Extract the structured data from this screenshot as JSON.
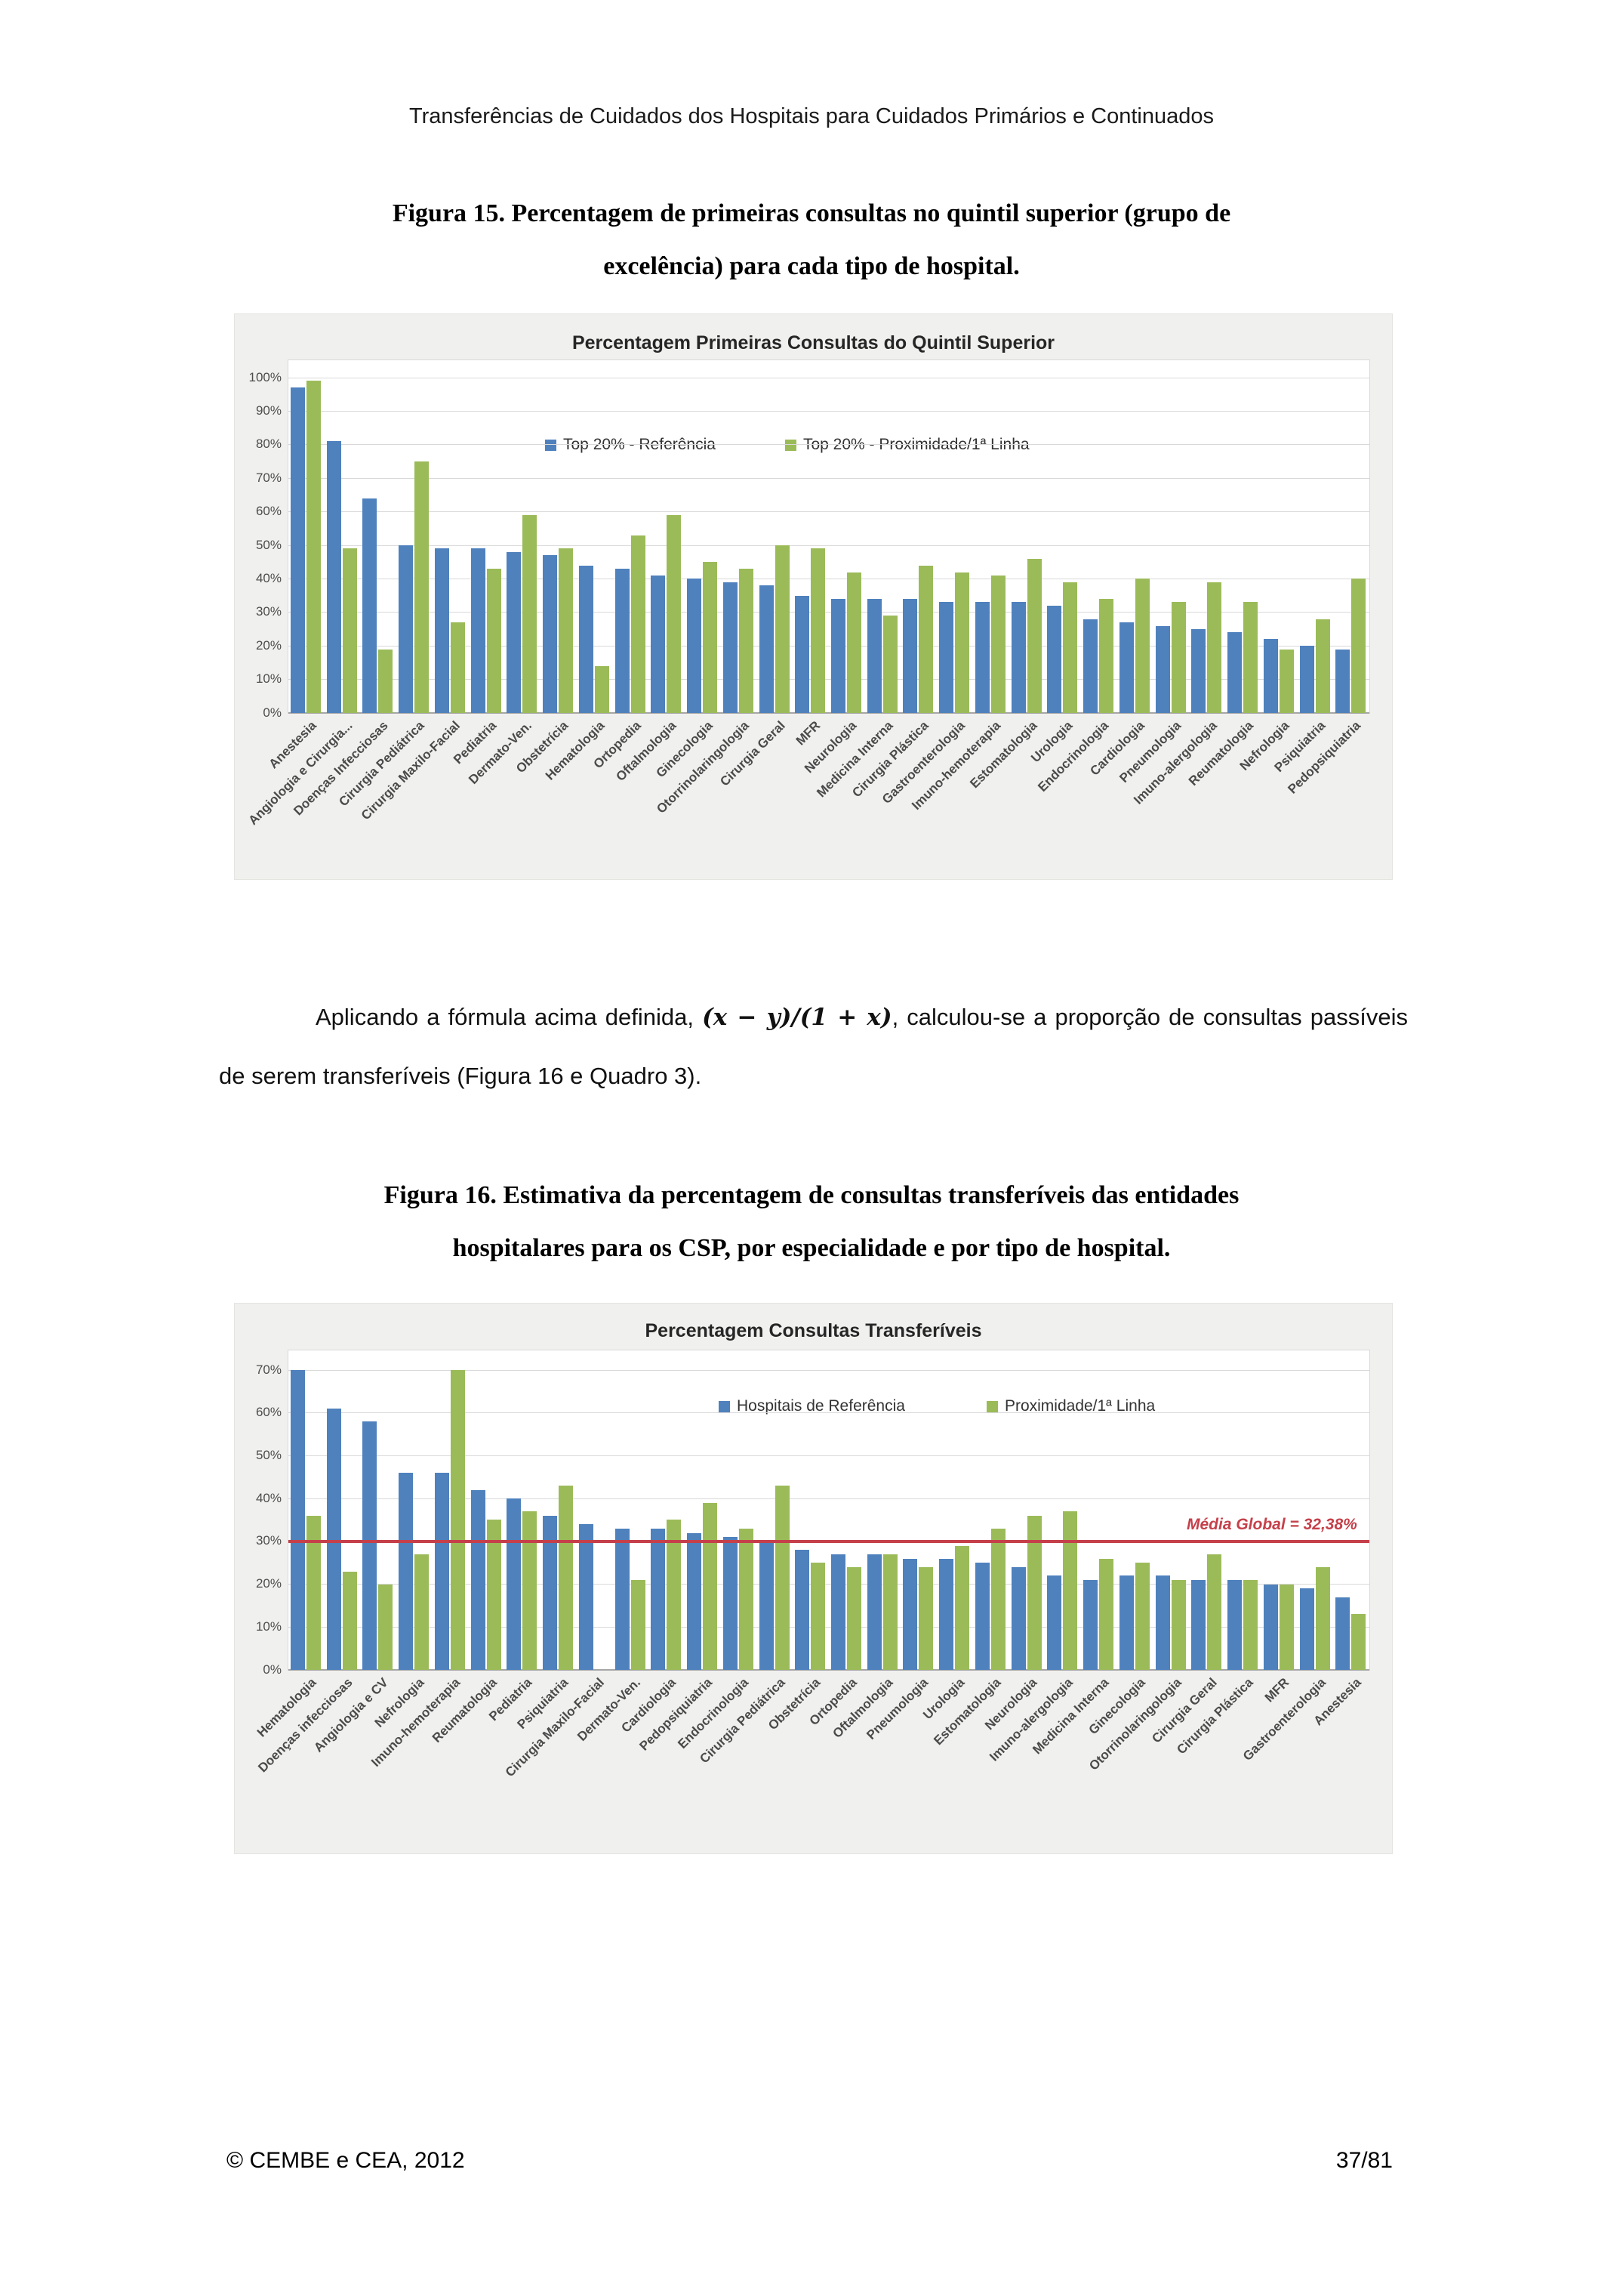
{
  "page": {
    "header": "Transferências de Cuidados dos Hospitais para Cuidados Primários e Continuados",
    "figura15": {
      "line1": "Figura 15. Percentagem de primeiras consultas no quintil superior (grupo de",
      "line2": "excelência) para cada tipo de hospital."
    },
    "paragraph": {
      "text_before_formula": "Aplicando a fórmula acima definida, ",
      "formula": "(x − y)/(1 + x)",
      "text_after_formula": ", calculou-se a proporção de consultas passíveis de serem transferíveis (Figura 16 e Quadro 3)."
    },
    "figura16": {
      "line1": "Figura 16. Estimativa da percentagem de consultas transferíveis das entidades",
      "line2": "hospitalares para os CSP, por especialidade e por tipo de hospital."
    },
    "footer": {
      "left": "© CEMBE e CEA, 2012",
      "right": "37/81"
    }
  },
  "colors": {
    "referencia_blue": "#4F81BD",
    "proximidade_green": "#9BBB59",
    "media_line_red": "#C5404A",
    "grid_gray": "#d9d9d9"
  },
  "chart_data": [
    {
      "type": "bar",
      "title": "Percentagem Primeiras Consultas do Quintil Superior",
      "xlabel": "",
      "ylabel": "",
      "ylim": [
        0,
        100
      ],
      "ystep": 10,
      "grid": true,
      "legend_position": "inside-top",
      "categories": [
        "Anestesia",
        "Angiologia e Cirurgia...",
        "Doenças Infecciosas",
        "Cirurgia Pediátrica",
        "Cirurgia Maxilo-Facial",
        "Pediatria",
        "Dermato-Ven.",
        "Obstetrícia",
        "Hematologia",
        "Ortopedia",
        "Oftalmologia",
        "Ginecologia",
        "Otorrinolaringologia",
        "Cirurgia Geral",
        "MFR",
        "Neurologia",
        "Medicina Interna",
        "Cirurgia Plástica",
        "Gastroenterologia",
        "Imuno-hemoterapia",
        "Estomatologia",
        "Urologia",
        "Endocrinologia",
        "Cardiologia",
        "Pneumologia",
        "Imuno-alergologia",
        "Reumatologia",
        "Nefrologia",
        "Psiquiatria",
        "Pedopsiquiatria"
      ],
      "series": [
        {
          "name": "Top 20% - Referência",
          "color": "#4F81BD",
          "values": [
            97,
            81,
            64,
            50,
            49,
            49,
            48,
            47,
            44,
            43,
            41,
            40,
            39,
            38,
            35,
            34,
            34,
            34,
            33,
            33,
            33,
            32,
            28,
            27,
            26,
            25,
            24,
            22,
            20,
            19
          ]
        },
        {
          "name": "Top 20% - Proximidade/1ª Linha",
          "color": "#9BBB59",
          "values": [
            99,
            49,
            19,
            75,
            27,
            43,
            59,
            49,
            14,
            53,
            59,
            45,
            43,
            50,
            49,
            42,
            29,
            44,
            42,
            41,
            46,
            39,
            34,
            40,
            33,
            39,
            33,
            19,
            28,
            40
          ]
        }
      ]
    },
    {
      "type": "bar",
      "title": "Percentagem Consultas Transferíveis",
      "xlabel": "",
      "ylabel": "",
      "ylim": [
        0,
        70
      ],
      "ystep": 10,
      "grid": true,
      "legend_position": "inside-top",
      "categories": [
        "Hematologia",
        "Doenças infecciosas",
        "Angiologia e CV",
        "Nefrologia",
        "Imuno-hemoterapia",
        "Reumatologia",
        "Pediatria",
        "Psiquiatria",
        "Cirurgia Maxilo-Facial",
        "Dermato-Ven.",
        "Cardiologia",
        "Pedopsiquiatria",
        "Endocrinologia",
        "Cirurgia Pediátrica",
        "Obstetrícia",
        "Ortopedia",
        "Oftalmologia",
        "Pneumologia",
        "Urologia",
        "Estomatologia",
        "Neurologia",
        "Imuno-alergologia",
        "Medicina Interna",
        "Ginecologia",
        "Otorrinolaringologia",
        "Cirurgia Geral",
        "Cirurgia Plástica",
        "MFR",
        "Gastroenterologia",
        "Anestesia"
      ],
      "series": [
        {
          "name": "Hospitais de Referência",
          "color": "#4F81BD",
          "values": [
            70,
            61,
            58,
            46,
            46,
            42,
            40,
            36,
            34,
            33,
            33,
            32,
            31,
            30,
            28,
            27,
            27,
            26,
            26,
            25,
            24,
            22,
            21,
            22,
            22,
            21,
            21,
            20,
            19,
            17
          ]
        },
        {
          "name": "Proximidade/1ª Linha",
          "color": "#9BBB59",
          "values": [
            36,
            23,
            20,
            27,
            70,
            35,
            37,
            43,
            0,
            21,
            35,
            39,
            33,
            43,
            25,
            24,
            27,
            24,
            29,
            33,
            36,
            37,
            26,
            25,
            21,
            27,
            21,
            20,
            24,
            13
          ]
        }
      ],
      "mean_line": {
        "label": "Média Global = 32,38%",
        "value": 32.38,
        "line_pct": 30
      }
    }
  ]
}
